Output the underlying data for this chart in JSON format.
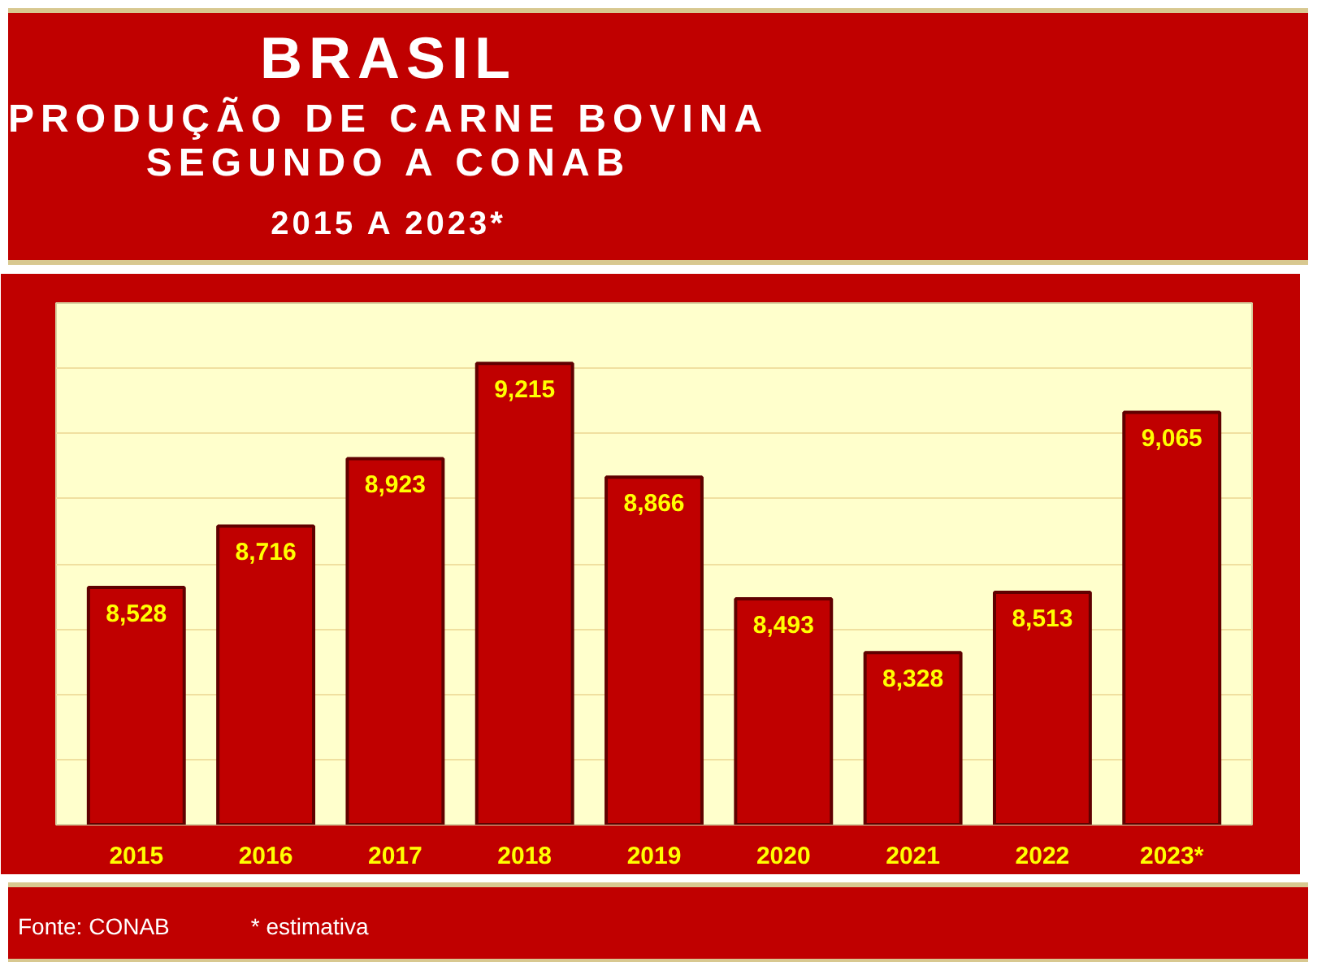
{
  "chart_data": {
    "type": "bar",
    "title": "BRASIL",
    "subtitle": "PRODUÇÃO DE CARNE BOVINA\nSEGUNDO A CONAB",
    "categories": [
      "2015",
      "2016",
      "2017",
      "2018",
      "2019",
      "2020",
      "2021",
      "2022",
      "2023*"
    ],
    "values": [
      8528,
      8716,
      8923,
      9215,
      8866,
      8493,
      8328,
      8513,
      9065
    ],
    "value_labels": [
      "8,528",
      "8,716",
      "8,923",
      "9,215",
      "8,866",
      "8,493",
      "8,328",
      "8,513",
      "9,065"
    ],
    "color": "#c00000",
    "ylim": [
      7800,
      9400
    ],
    "yticks": [
      {
        "value": 7800,
        "label": null
      },
      {
        "value": 8000,
        "label": null
      },
      {
        "value": 8200,
        "label": null
      },
      {
        "value": 8400,
        "label": null
      },
      {
        "value": 8600,
        "label": null
      },
      {
        "value": 8800,
        "label": null
      },
      {
        "value": 9000,
        "label": null
      },
      {
        "value": 9200,
        "label": null
      },
      {
        "value": 9400,
        "label": null
      }
    ],
    "tick_labels": "x",
    "grid": "y",
    "annotations": [
      "2015 A 2023*",
      "Fonte: CONAB",
      "* estimativa"
    ]
  }
}
